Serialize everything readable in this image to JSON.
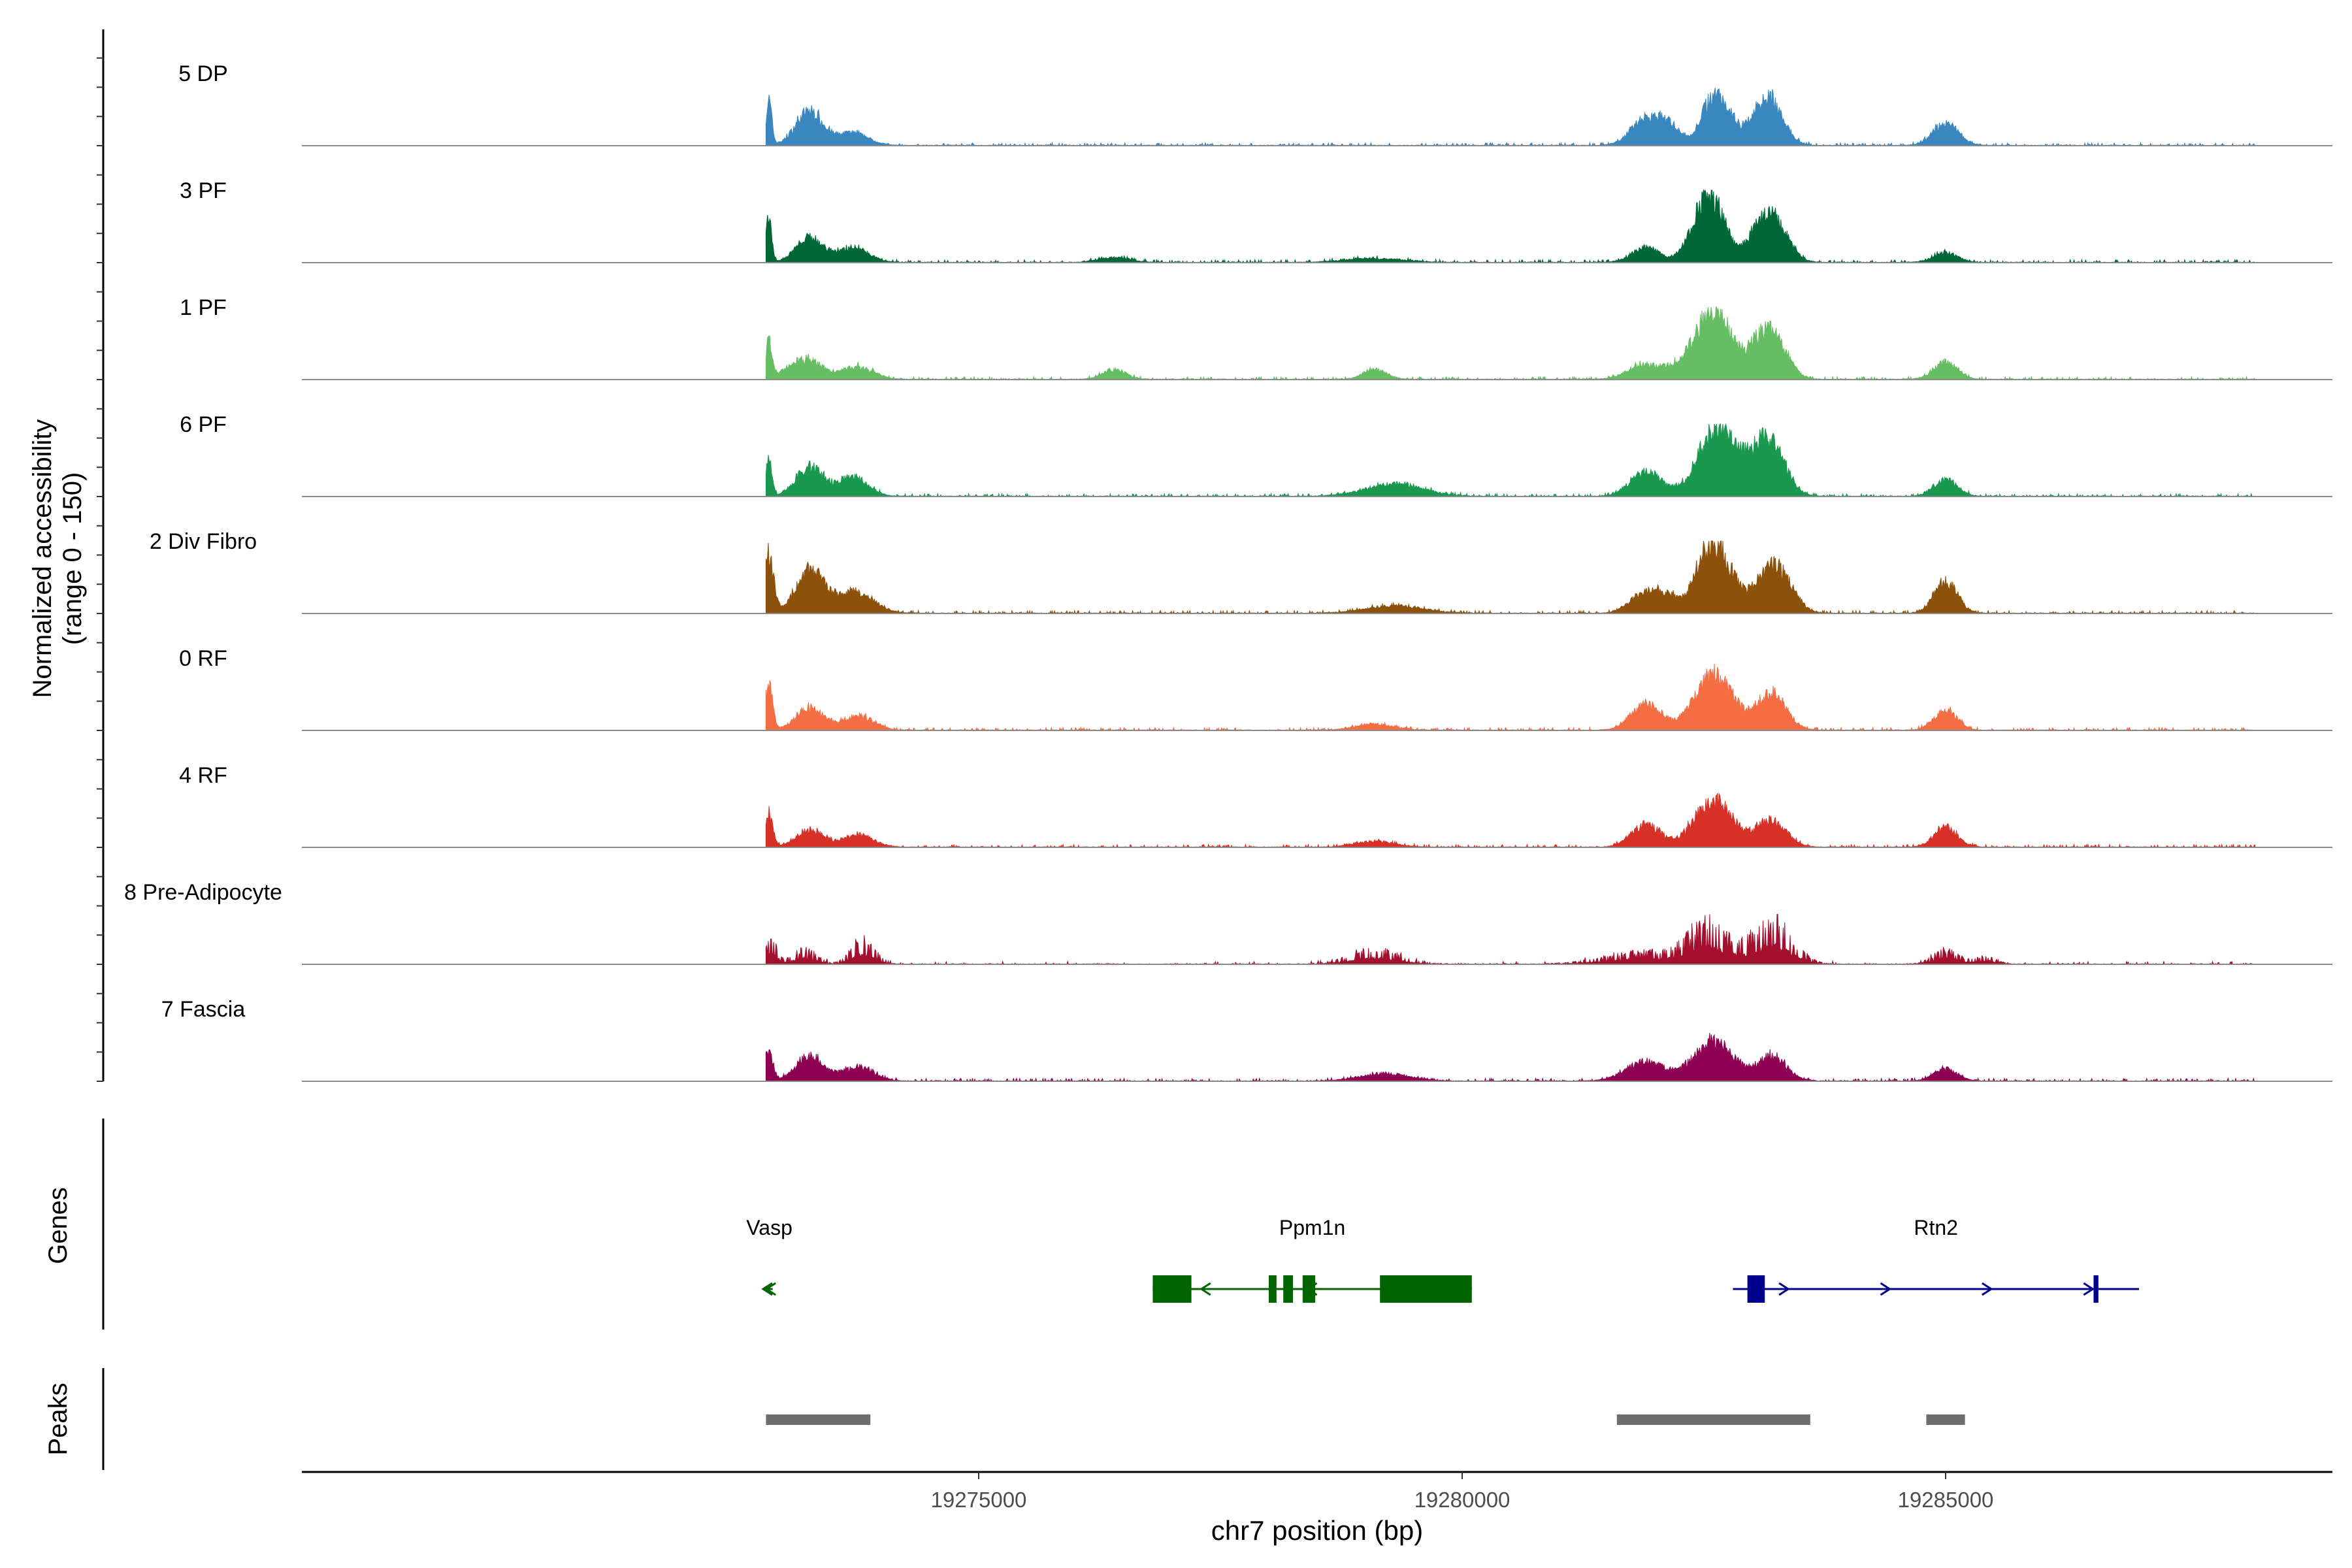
{
  "chart_data": {
    "type": "area",
    "title": "",
    "xlabel": "chr7 position (bp)",
    "ylabel": "Normalized accessibility (range 0 - 150)",
    "ylabel_lines": [
      "Normalized accessibility",
      "(range 0 - 150)"
    ],
    "xlim": [
      19268000,
      19289000
    ],
    "ylim": [
      0,
      150
    ],
    "x_ticks": [
      19275000,
      19280000,
      19285000
    ],
    "x_tick_labels": [
      "19275000",
      "19280000",
      "19285000"
    ],
    "track_start": 19272800,
    "track_end": 19288200,
    "tracks": [
      {
        "name": "5 DP",
        "color": "#3A87C0",
        "peaks": [
          [
            19272830,
            90,
            30
          ],
          [
            19273250,
            70,
            140
          ],
          [
            19273700,
            25,
            160
          ],
          [
            19281900,
            55,
            150
          ],
          [
            19282150,
            35,
            110
          ],
          [
            19282550,
            60,
            110
          ],
          [
            19282700,
            70,
            120
          ],
          [
            19283150,
            100,
            150
          ],
          [
            19285000,
            45,
            130
          ]
        ]
      },
      {
        "name": "3 PF",
        "color": "#006837",
        "peaks": [
          [
            19272830,
            90,
            30
          ],
          [
            19273250,
            50,
            140
          ],
          [
            19273700,
            30,
            160
          ],
          [
            19276400,
            10,
            160
          ],
          [
            19281900,
            30,
            140
          ],
          [
            19282550,
            140,
            160
          ],
          [
            19283020,
            25,
            90
          ],
          [
            19283200,
            95,
            150
          ],
          [
            19285000,
            20,
            120
          ],
          [
            19279100,
            8,
            300
          ]
        ]
      },
      {
        "name": "1 PF",
        "color": "#66BD63",
        "peaks": [
          [
            19272830,
            75,
            30
          ],
          [
            19273200,
            40,
            180
          ],
          [
            19273750,
            25,
            160
          ],
          [
            19276400,
            20,
            120
          ],
          [
            19279100,
            20,
            120
          ],
          [
            19281900,
            30,
            180
          ],
          [
            19282250,
            15,
            120
          ],
          [
            19282600,
            140,
            190
          ],
          [
            19283030,
            25,
            100
          ],
          [
            19283200,
            90,
            150
          ],
          [
            19285000,
            35,
            120
          ]
        ]
      },
      {
        "name": "6 PF",
        "color": "#1A9850",
        "peaks": [
          [
            19272830,
            80,
            30
          ],
          [
            19273250,
            60,
            140
          ],
          [
            19273700,
            40,
            150
          ],
          [
            19279300,
            25,
            300
          ],
          [
            19281900,
            50,
            160
          ],
          [
            19282650,
            145,
            200
          ],
          [
            19283030,
            30,
            100
          ],
          [
            19283200,
            100,
            150
          ],
          [
            19285000,
            35,
            120
          ]
        ]
      },
      {
        "name": "2 Div Fibro",
        "color": "#8C510A",
        "peaks": [
          [
            19272830,
            120,
            50
          ],
          [
            19273250,
            85,
            140
          ],
          [
            19273700,
            45,
            200
          ],
          [
            19279300,
            15,
            300
          ],
          [
            19281900,
            45,
            150
          ],
          [
            19282120,
            25,
            80
          ],
          [
            19282600,
            145,
            180
          ],
          [
            19283220,
            100,
            170
          ],
          [
            19285000,
            65,
            120
          ]
        ]
      },
      {
        "name": "0 RF",
        "color": "#F46D43",
        "peaks": [
          [
            19272830,
            90,
            40
          ],
          [
            19273250,
            45,
            140
          ],
          [
            19273750,
            30,
            160
          ],
          [
            19279100,
            12,
            200
          ],
          [
            19281900,
            55,
            150
          ],
          [
            19282600,
            110,
            200
          ],
          [
            19283200,
            75,
            150
          ],
          [
            19285000,
            40,
            120
          ]
        ]
      },
      {
        "name": "4 RF",
        "color": "#D73027",
        "peaks": [
          [
            19272830,
            70,
            40
          ],
          [
            19273250,
            35,
            140
          ],
          [
            19273750,
            25,
            160
          ],
          [
            19279100,
            12,
            200
          ],
          [
            19281900,
            45,
            150
          ],
          [
            19282600,
            95,
            200
          ],
          [
            19283200,
            55,
            150
          ],
          [
            19285000,
            40,
            120
          ]
        ]
      },
      {
        "name": "8 Pre-Adipocyte",
        "color": "#A50F2E",
        "peaks": [
          [
            19272850,
            55,
            60
          ],
          [
            19273200,
            30,
            120
          ],
          [
            19273800,
            50,
            120
          ],
          [
            19279100,
            30,
            250
          ],
          [
            19281900,
            25,
            400
          ],
          [
            19282550,
            80,
            200
          ],
          [
            19283200,
            90,
            200
          ],
          [
            19285000,
            30,
            120
          ],
          [
            19285400,
            15,
            120
          ]
        ]
      },
      {
        "name": "7 Fascia",
        "color": "#8E0152",
        "peaks": [
          [
            19272830,
            65,
            40
          ],
          [
            19273250,
            50,
            140
          ],
          [
            19273750,
            30,
            160
          ],
          [
            19279200,
            15,
            250
          ],
          [
            19281900,
            40,
            200
          ],
          [
            19282600,
            80,
            200
          ],
          [
            19283200,
            50,
            150
          ],
          [
            19285000,
            25,
            120
          ]
        ]
      }
    ],
    "genes_track_label": "Genes",
    "genes": [
      {
        "name": "Vasp",
        "strand": "-",
        "color": "#006400",
        "start": 19272800,
        "end": 19272870,
        "exons": []
      },
      {
        "name": "Ppm1n",
        "strand": "-",
        "color": "#006400",
        "start": 19276800,
        "end": 19280100,
        "exons": [
          [
            19276800,
            19277200
          ],
          [
            19278000,
            19278080
          ],
          [
            19278150,
            19278250
          ],
          [
            19278350,
            19278480
          ],
          [
            19279150,
            19280100
          ]
        ]
      },
      {
        "name": "Rtn2",
        "strand": "+",
        "color": "#00008B",
        "start": 19282800,
        "end": 19287000,
        "exons": [
          [
            19282950,
            19283130
          ],
          [
            19286530,
            19286580
          ]
        ]
      }
    ],
    "peaks_track_label": "Peaks",
    "peak_regions": [
      [
        19272800,
        19273880
      ],
      [
        19281600,
        19283600
      ],
      [
        19284800,
        19285200
      ]
    ],
    "peak_color": "#6E6E6E"
  }
}
